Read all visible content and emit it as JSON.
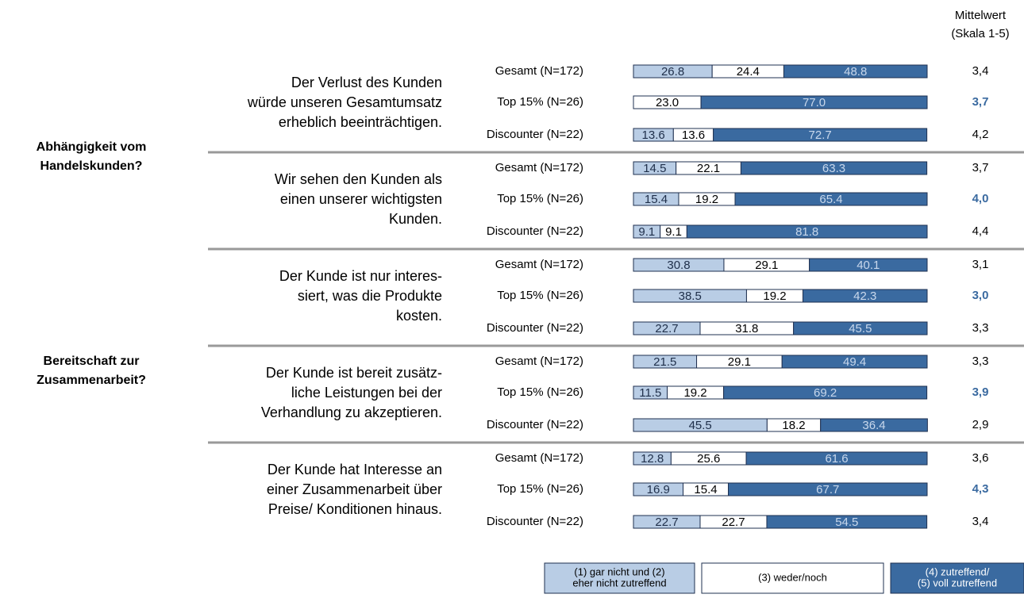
{
  "chart_data": {
    "type": "bar",
    "orientation": "horizontal",
    "stacked": true,
    "xlim": [
      0,
      100
    ],
    "mean_header": [
      "Mittelwert",
      "(Skala 1-5)"
    ],
    "sections": [
      [
        "Abhängigkeit vom",
        "Handelskunden?"
      ],
      [
        "Bereitschaft zur",
        "Zusammenarbeit?"
      ]
    ],
    "statements": [
      [
        "Der Verlust des Kunden",
        "würde unseren Gesamtumsatz",
        "erheblich beeinträchtigen."
      ],
      [
        "Wir sehen den Kunden als",
        "einen unserer wichtigsten",
        "Kunden."
      ],
      [
        "Der Kunde ist nur interes-",
        "siert, was die Produkte",
        "kosten."
      ],
      [
        "Der Kunde ist bereit zusätz-",
        "liche Leistungen bei der",
        "Verhandlung zu akzeptieren."
      ],
      [
        "Der Kunde hat Interesse an",
        "einer Zusammenarbeit über",
        "Preise/ Konditionen hinaus."
      ]
    ],
    "categories": [
      "Gesamt (N=172)",
      "Top 15% (N=26)",
      "Discounter (N=22)",
      "Gesamt (N=172)",
      "Top 15% (N=26)",
      "Discounter (N=22)",
      "Gesamt (N=172)",
      "Top 15% (N=26)",
      "Discounter (N=22)",
      "Gesamt (N=172)",
      "Top 15% (N=26)",
      "Discounter (N=22)",
      "Gesamt (N=172)",
      "Top 15% (N=26)",
      "Discounter (N=22)"
    ],
    "series": [
      {
        "name": [
          "(1) gar nicht und (2)",
          "eher nicht zutreffend"
        ],
        "color": "#b9cde5",
        "label_color": "#1f2f4a",
        "values": [
          26.8,
          null,
          13.6,
          14.5,
          15.4,
          9.1,
          30.8,
          38.5,
          22.7,
          21.5,
          11.5,
          45.5,
          12.8,
          16.9,
          22.7
        ],
        "value_labels": [
          "26.8",
          null,
          "13.6",
          "14.5",
          "15.4",
          "9.1",
          "30.8",
          "38.5",
          "22.7",
          "21.5",
          "11.5",
          "45.5",
          "12.8",
          "16.9",
          "22.7"
        ]
      },
      {
        "name": [
          "(3) weder/noch"
        ],
        "color": "#ffffff",
        "label_color": "#000000",
        "values": [
          24.4,
          23.0,
          13.6,
          22.1,
          19.2,
          9.1,
          29.1,
          19.2,
          31.8,
          29.1,
          19.2,
          18.2,
          25.6,
          15.4,
          22.7
        ],
        "value_labels": [
          "24.4",
          "23.0",
          "13.6",
          "22.1",
          "19.2",
          "9.1",
          "29.1",
          "19.2",
          "31.8",
          "29.1",
          "19.2",
          "18.2",
          "25.6",
          "15.4",
          "22.7"
        ]
      },
      {
        "name": [
          "(4) zutreffend/",
          "(5) voll zutreffend"
        ],
        "color": "#3a6aa0",
        "label_color": "#c9d8ec",
        "values": [
          48.8,
          77.0,
          72.7,
          63.3,
          65.4,
          81.8,
          40.1,
          42.3,
          45.5,
          49.4,
          69.2,
          36.4,
          61.6,
          67.7,
          54.5
        ],
        "value_labels": [
          "48.8",
          "77.0",
          "72.7",
          "63.3",
          "65.4",
          "81.8",
          "40.1",
          "42.3",
          "45.5",
          "49.4",
          "69.2",
          "36.4",
          "61.6",
          "67.7",
          "54.5"
        ]
      }
    ],
    "means": {
      "values": [
        3.4,
        3.7,
        4.2,
        3.7,
        4.0,
        4.4,
        3.1,
        3.0,
        3.3,
        3.3,
        3.9,
        2.9,
        3.6,
        4.3,
        3.4
      ],
      "value_labels": [
        "3,4",
        "3,7",
        "4,2",
        "3,7",
        "4,0",
        "4,4",
        "3,1",
        "3,0",
        "3,3",
        "3,3",
        "3,9",
        "2,9",
        "3,6",
        "4,3",
        "3,4"
      ],
      "highlight_color": "#3a6aa0"
    }
  }
}
